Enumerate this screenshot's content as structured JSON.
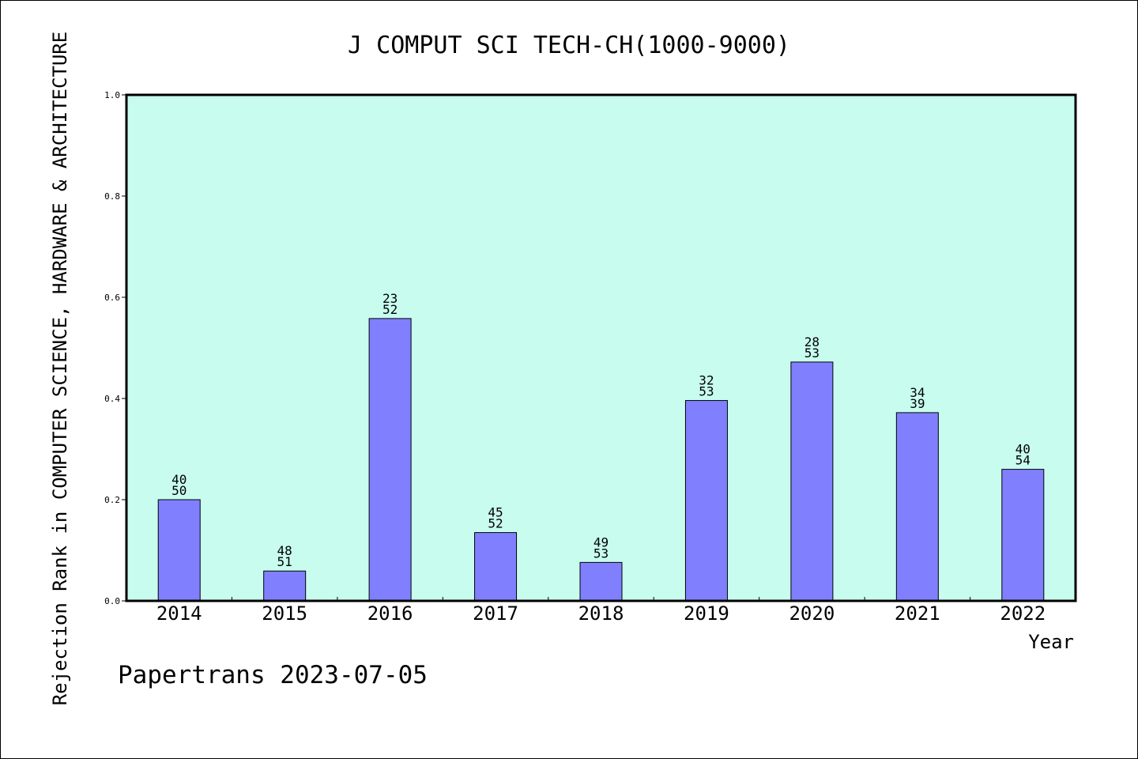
{
  "chart_data": {
    "type": "bar",
    "title": "J COMPUT SCI TECH-CH(1000-9000)",
    "xlabel": "Year",
    "ylabel": "Rejection Rank in COMPUTER SCIENCE, HARDWARE & ARCHITECTURE",
    "categories": [
      "2014",
      "2015",
      "2016",
      "2017",
      "2018",
      "2019",
      "2020",
      "2021",
      "2022"
    ],
    "values": [
      0.2,
      0.059,
      0.558,
      0.135,
      0.076,
      0.396,
      0.472,
      0.372,
      0.26
    ],
    "rank_labels": [
      [
        "40",
        "50"
      ],
      [
        "48",
        "51"
      ],
      [
        "23",
        "52"
      ],
      [
        "45",
        "52"
      ],
      [
        "49",
        "53"
      ],
      [
        "32",
        "53"
      ],
      [
        "28",
        "53"
      ],
      [
        "34",
        "39"
      ],
      [
        "40",
        "54"
      ]
    ],
    "ylim": [
      0.0,
      1.0
    ],
    "yticks": [
      "0.0",
      "0.2",
      "0.4",
      "0.6",
      "0.8",
      "1.0"
    ],
    "grid": false,
    "legend": "none",
    "colors": {
      "plot_background": "#c8fcee",
      "bar_fill": "#8080ff",
      "bar_stroke": "#000000",
      "axis": "#000000"
    }
  },
  "footer": {
    "text": "Papertrans 2023-07-05"
  }
}
